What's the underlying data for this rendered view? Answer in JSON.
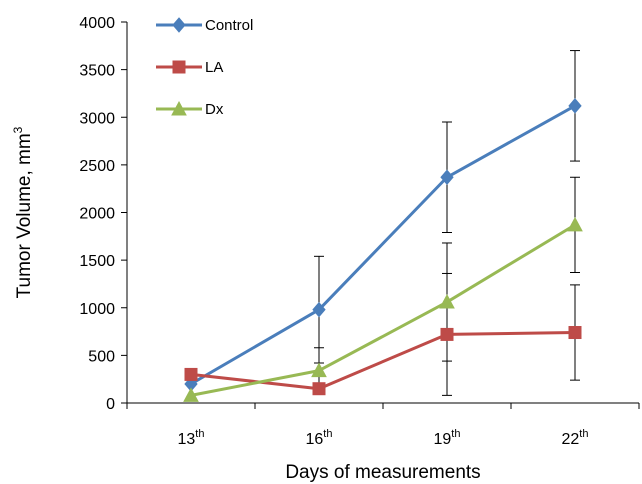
{
  "chart_data": {
    "type": "line",
    "title": "",
    "xlabel": "Days of measurements",
    "ylabel": "Tumor Volume, mm",
    "ylabel_superscript": "3",
    "categories": [
      {
        "base": "13",
        "sup": "th"
      },
      {
        "base": "16",
        "sup": "th"
      },
      {
        "base": "19",
        "sup": "th"
      },
      {
        "base": "22",
        "sup": "th"
      }
    ],
    "ylim": [
      0,
      4000
    ],
    "yticks": [
      0,
      500,
      1000,
      1500,
      2000,
      2500,
      3000,
      3500,
      4000
    ],
    "grid": false,
    "legend_position": "top-left",
    "series": [
      {
        "name": "Control",
        "color": "#4a7ebb",
        "marker": "diamond",
        "values": [
          200,
          980,
          2370,
          3120
        ],
        "errors": [
          null,
          560,
          580,
          580
        ]
      },
      {
        "name": "LA",
        "color": "#be4b48",
        "marker": "square",
        "values": [
          300,
          150,
          720,
          740
        ],
        "errors": [
          null,
          null,
          640,
          500
        ]
      },
      {
        "name": "Dx",
        "color": "#98b954",
        "marker": "triangle",
        "values": [
          80,
          340,
          1060,
          1870
        ],
        "errors": [
          null,
          240,
          620,
          500
        ]
      }
    ]
  }
}
